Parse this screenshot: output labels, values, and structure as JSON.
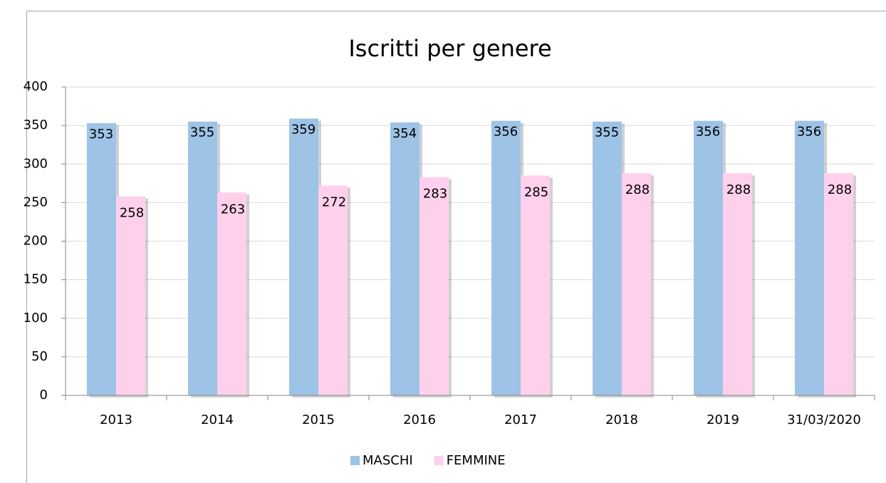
{
  "chart_data": {
    "type": "bar",
    "title": "Iscritti per genere",
    "categories": [
      "2013",
      "2014",
      "2015",
      "2016",
      "2017",
      "2018",
      "2019",
      "31/03/2020"
    ],
    "series": [
      {
        "name": "MASCHI",
        "color": "#9dc3e6",
        "values": [
          353,
          355,
          359,
          354,
          356,
          355,
          356,
          356
        ]
      },
      {
        "name": "FEMMINE",
        "color": "#ffd0ec",
        "values": [
          258,
          263,
          272,
          283,
          285,
          288,
          288,
          288
        ]
      }
    ],
    "ylim": [
      0,
      400
    ],
    "yticks": [
      0,
      50,
      100,
      150,
      200,
      250,
      300,
      350,
      400
    ],
    "grid": true,
    "legend": "bottom",
    "data_labels": true
  }
}
